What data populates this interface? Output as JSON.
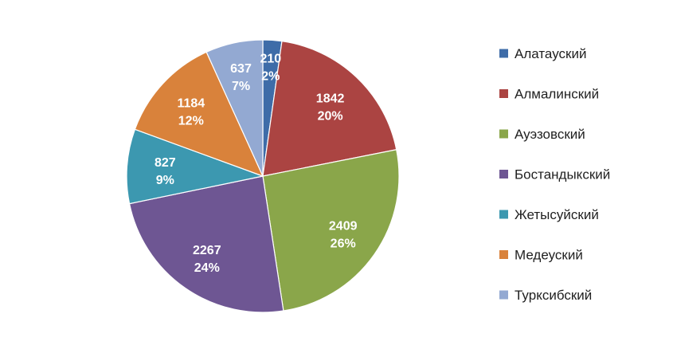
{
  "chart_data": {
    "type": "pie",
    "title": "",
    "legend_position": "right",
    "categories": [
      "Алатауский",
      "Алмалинский",
      "Ауэзовский",
      "Бостандыкский",
      "Жетысуйский",
      "Медеуский",
      "Турксибский"
    ],
    "values": [
      210,
      1842,
      2409,
      2267,
      827,
      1184,
      637
    ],
    "value_labels": [
      "210",
      "1842",
      "2409",
      "2267",
      "827",
      "1184",
      "637"
    ],
    "percent_labels": [
      "2%",
      "20%",
      "26%",
      "24%",
      "9%",
      "12%",
      "7%"
    ],
    "colors": [
      "#3e6ca8",
      "#ab4442",
      "#8aa64a",
      "#6e5693",
      "#3c98b0",
      "#d9823b",
      "#93a9d2"
    ],
    "start_angle_deg": 0,
    "direction": "clockwise"
  }
}
